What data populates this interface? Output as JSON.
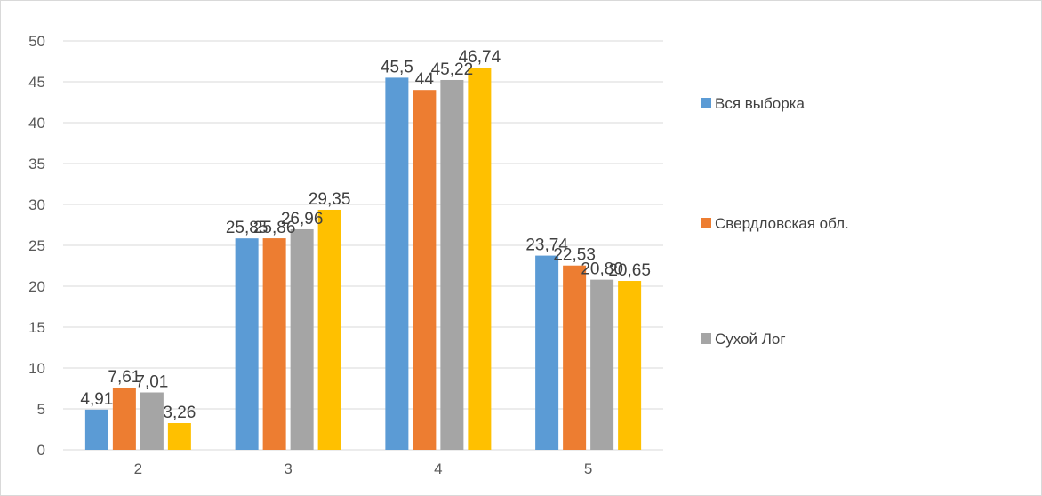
{
  "chart_data": {
    "type": "bar",
    "title": "",
    "xlabel": "",
    "ylabel": "",
    "categories": [
      "2",
      "3",
      "4",
      "5"
    ],
    "ylim": [
      0,
      50
    ],
    "yticks": [
      "0",
      "5",
      "10",
      "15",
      "20",
      "25",
      "30",
      "35",
      "40",
      "45",
      "50"
    ],
    "grid": true,
    "legend_position": "right",
    "series": [
      {
        "name": "Вся выборка",
        "color": "#5b9bd5",
        "values": [
          4.91,
          25.85,
          45.5,
          23.74
        ],
        "labels": [
          "4,91",
          "25,85",
          "45,5",
          "23,74"
        ]
      },
      {
        "name": "Свердловская обл.",
        "color": "#ed7d31",
        "values": [
          7.61,
          25.86,
          44,
          22.53
        ],
        "labels": [
          "7,61",
          "25,86",
          "44",
          "22,53"
        ]
      },
      {
        "name": "Сухой Лог",
        "color": "#a5a5a5",
        "values": [
          7.01,
          26.96,
          45.22,
          20.8
        ],
        "labels": [
          "7,01",
          "26,96",
          "45,22",
          "20,80"
        ]
      },
      {
        "color": "#ffc000",
        "values": [
          3.26,
          29.35,
          46.74,
          20.65
        ],
        "labels": [
          "3,26",
          "29,35",
          "46,74",
          "20,65"
        ]
      }
    ]
  }
}
